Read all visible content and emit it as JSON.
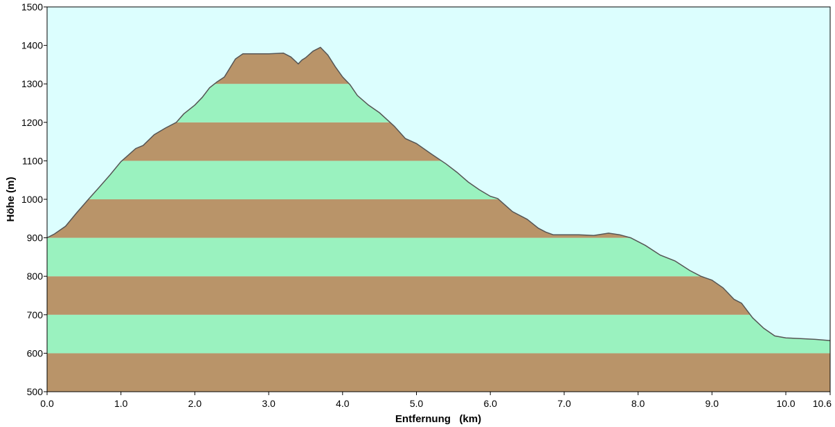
{
  "chart_data": {
    "type": "area",
    "xlabel": "Entfernung   (km)",
    "ylabel": "Höhe (m)",
    "xlim": [
      0.0,
      10.6
    ],
    "ylim": [
      500,
      1500
    ],
    "x_ticks": [
      "0.0",
      "1.0",
      "2.0",
      "3.0",
      "4.0",
      "5.0",
      "6.0",
      "7.0",
      "8.0",
      "9.0",
      "10.0",
      "10.6"
    ],
    "y_ticks": [
      "500",
      "600",
      "700",
      "800",
      "900",
      "1000",
      "1100",
      "1200",
      "1300",
      "1400",
      "1500"
    ],
    "grid": false,
    "legend": "none",
    "band_step_m": 100,
    "series": [
      {
        "x": [
          0.0,
          0.1,
          0.25,
          0.4,
          0.55,
          0.7,
          0.85,
          1.0,
          1.1,
          1.2,
          1.3,
          1.45,
          1.6,
          1.75,
          1.85,
          2.0,
          2.1,
          2.2,
          2.3,
          2.4,
          2.55,
          2.65,
          2.8,
          3.0,
          3.2,
          3.3,
          3.4,
          3.45,
          3.5,
          3.6,
          3.7,
          3.8,
          3.9,
          4.0,
          4.1,
          4.2,
          4.35,
          4.5,
          4.7,
          4.85,
          5.0,
          5.2,
          5.4,
          5.55,
          5.7,
          5.85,
          6.0,
          6.1,
          6.3,
          6.5,
          6.65,
          6.75,
          6.85,
          7.0,
          7.2,
          7.4,
          7.6,
          7.75,
          7.9,
          8.1,
          8.3,
          8.5,
          8.7,
          8.85,
          9.0,
          9.15,
          9.3,
          9.4,
          9.55,
          9.7,
          9.85,
          10.0,
          10.2,
          10.4,
          10.6
        ],
        "y": [
          900,
          910,
          930,
          965,
          998,
          1030,
          1063,
          1098,
          1115,
          1132,
          1140,
          1168,
          1185,
          1200,
          1222,
          1245,
          1265,
          1290,
          1305,
          1318,
          1365,
          1378,
          1378,
          1378,
          1380,
          1370,
          1352,
          1362,
          1368,
          1385,
          1395,
          1375,
          1345,
          1318,
          1298,
          1270,
          1245,
          1225,
          1190,
          1158,
          1145,
          1118,
          1092,
          1070,
          1045,
          1025,
          1008,
          1002,
          968,
          948,
          925,
          915,
          908,
          908,
          908,
          906,
          912,
          908,
          900,
          880,
          855,
          840,
          815,
          800,
          790,
          770,
          740,
          730,
          692,
          665,
          645,
          640,
          638,
          636,
          633
        ]
      }
    ],
    "colors": {
      "sky": "#dcfefe",
      "band_green": "#9af2bf",
      "band_brown": "#b99469",
      "outline": "#555555"
    }
  }
}
